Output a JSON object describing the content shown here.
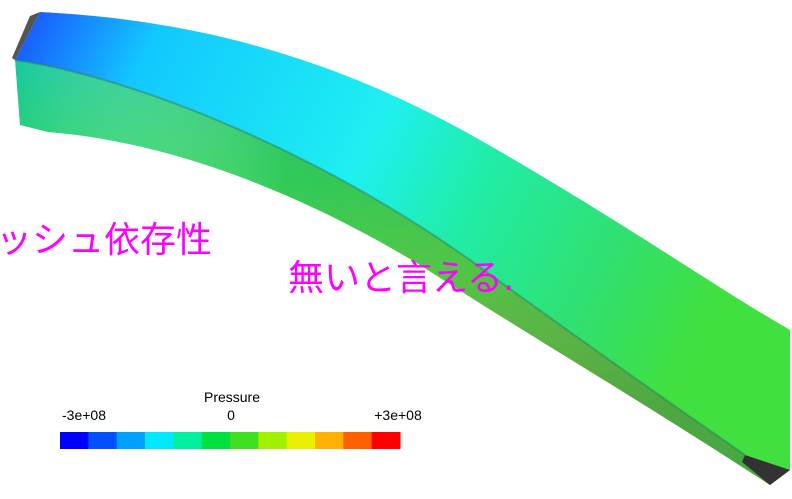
{
  "annotation": {
    "lines": [
      "ッシュ依存性",
      "無いと言える."
    ],
    "color": "#ff00ff"
  },
  "colorbar": {
    "title": "Pressure",
    "tick_labels": [
      "-3e+08",
      "0",
      "+3e+08"
    ],
    "colors": [
      "#0000ff",
      "#0050ff",
      "#00a0ff",
      "#00e8ff",
      "#00f0a0",
      "#00e040",
      "#40e020",
      "#a0f000",
      "#e8f000",
      "#ffb000",
      "#ff6000",
      "#ff0000"
    ]
  }
}
